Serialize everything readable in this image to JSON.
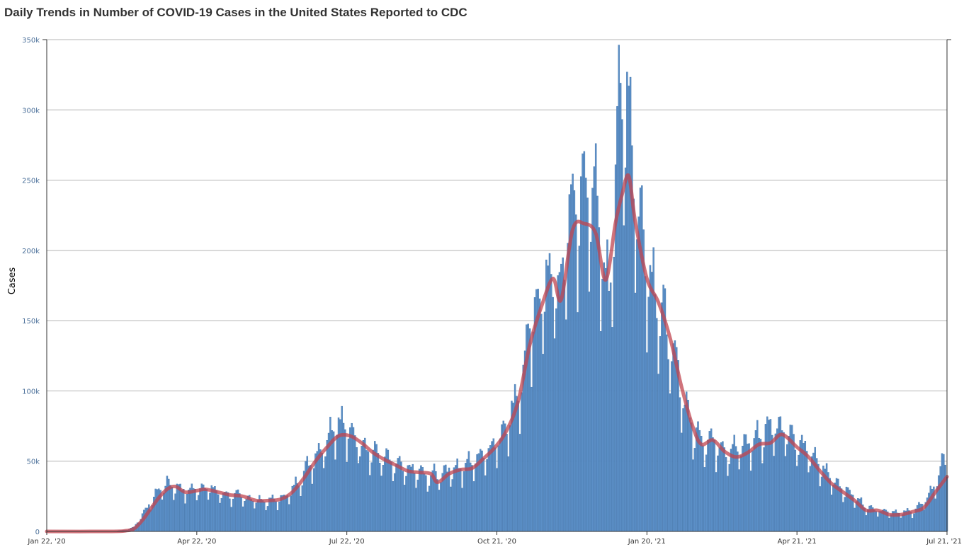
{
  "chart_data": {
    "type": "bar",
    "title": "Daily Trends in Number of COVID-19 Cases in the United States Reported to CDC",
    "ylabel": "Cases",
    "xlabel": "",
    "ylim": [
      0,
      350000
    ],
    "y_ticks": [
      0,
      50000,
      100000,
      150000,
      200000,
      250000,
      300000,
      350000
    ],
    "y_tick_labels": [
      "0",
      "50k",
      "100k",
      "150k",
      "200k",
      "250k",
      "300k",
      "350k"
    ],
    "x_range": [
      "2020-01-22",
      "2021-07-21"
    ],
    "x_ticks": [
      {
        "date": "2020-01-22",
        "label": "Jan 22, '20"
      },
      {
        "date": "2020-04-22",
        "label": "Apr 22, '20"
      },
      {
        "date": "2020-07-22",
        "label": "Jul 22, '20"
      },
      {
        "date": "2020-10-21",
        "label": "Oct 21, '20"
      },
      {
        "date": "2021-01-20",
        "label": "Jan 20, '21"
      },
      {
        "date": "2021-04-21",
        "label": "Apr 21, '21"
      },
      {
        "date": "2021-07-21",
        "label": "Jul 21, '21"
      }
    ],
    "grid": true,
    "colors": {
      "bars": "#5b8fc7",
      "bars_edge": "#3d6fa6",
      "average_line": "#c0444f"
    },
    "series": [
      {
        "kind": "bar",
        "description": "daily cases, sampled at key dates",
        "points": [
          [
            "2020-01-22",
            0
          ],
          [
            "2020-03-01",
            0
          ],
          [
            "2020-03-10",
            1000
          ],
          [
            "2020-03-15",
            3000
          ],
          [
            "2020-03-20",
            12000
          ],
          [
            "2020-03-25",
            20000
          ],
          [
            "2020-03-30",
            29000
          ],
          [
            "2020-04-04",
            33000
          ],
          [
            "2020-04-10",
            31000
          ],
          [
            "2020-04-16",
            28000
          ],
          [
            "2020-04-22",
            30000
          ],
          [
            "2020-04-28",
            31000
          ],
          [
            "2020-05-05",
            27000
          ],
          [
            "2020-05-12",
            25000
          ],
          [
            "2020-05-20",
            24000
          ],
          [
            "2020-05-27",
            22000
          ],
          [
            "2020-06-03",
            21000
          ],
          [
            "2020-06-10",
            22000
          ],
          [
            "2020-06-17",
            26000
          ],
          [
            "2020-06-24",
            37000
          ],
          [
            "2020-07-01",
            50000
          ],
          [
            "2020-07-08",
            60000
          ],
          [
            "2020-07-13",
            72000
          ],
          [
            "2020-07-17",
            78000
          ],
          [
            "2020-07-22",
            70000
          ],
          [
            "2020-07-29",
            64000
          ],
          [
            "2020-08-05",
            56000
          ],
          [
            "2020-08-12",
            52000
          ],
          [
            "2020-08-19",
            47000
          ],
          [
            "2020-08-26",
            43000
          ],
          [
            "2020-09-02",
            42000
          ],
          [
            "2020-09-09",
            38000
          ],
          [
            "2020-09-16",
            40000
          ],
          [
            "2020-09-23",
            44000
          ],
          [
            "2020-09-30",
            44000
          ],
          [
            "2020-10-07",
            50000
          ],
          [
            "2020-10-14",
            56000
          ],
          [
            "2020-10-21",
            62000
          ],
          [
            "2020-10-28",
            78000
          ],
          [
            "2020-11-04",
            100000
          ],
          [
            "2020-11-11",
            145000
          ],
          [
            "2020-11-18",
            170000
          ],
          [
            "2020-11-25",
            180000
          ],
          [
            "2020-11-28",
            160000
          ],
          [
            "2020-12-04",
            225000
          ],
          [
            "2020-12-11",
            230000
          ],
          [
            "2020-12-18",
            245000
          ],
          [
            "2020-12-24",
            190000
          ],
          [
            "2020-12-28",
            165000
          ],
          [
            "2021-01-02",
            276000
          ],
          [
            "2021-01-08",
            313000
          ],
          [
            "2021-01-13",
            235000
          ],
          [
            "2021-01-20",
            190000
          ],
          [
            "2021-01-27",
            160000
          ],
          [
            "2021-02-03",
            130000
          ],
          [
            "2021-02-10",
            100000
          ],
          [
            "2021-02-17",
            70000
          ],
          [
            "2021-02-24",
            65000
          ],
          [
            "2021-03-03",
            62000
          ],
          [
            "2021-03-10",
            56000
          ],
          [
            "2021-03-17",
            58000
          ],
          [
            "2021-03-24",
            62000
          ],
          [
            "2021-03-31",
            68000
          ],
          [
            "2021-04-07",
            75000
          ],
          [
            "2021-04-14",
            72000
          ],
          [
            "2021-04-21",
            62000
          ],
          [
            "2021-04-28",
            55000
          ],
          [
            "2021-05-05",
            45000
          ],
          [
            "2021-05-12",
            37000
          ],
          [
            "2021-05-19",
            30000
          ],
          [
            "2021-05-26",
            24000
          ],
          [
            "2021-06-02",
            17000
          ],
          [
            "2021-06-09",
            15000
          ],
          [
            "2021-06-16",
            14000
          ],
          [
            "2021-06-23",
            13000
          ],
          [
            "2021-06-30",
            14000
          ],
          [
            "2021-07-07",
            20000
          ],
          [
            "2021-07-14",
            33000
          ],
          [
            "2021-07-21",
            55000
          ]
        ]
      },
      {
        "kind": "line",
        "description": "7-day moving average",
        "points": [
          [
            "2020-01-22",
            0
          ],
          [
            "2020-03-01",
            0
          ],
          [
            "2020-03-10",
            500
          ],
          [
            "2020-03-15",
            2000
          ],
          [
            "2020-03-20",
            8000
          ],
          [
            "2020-03-25",
            16000
          ],
          [
            "2020-03-30",
            24000
          ],
          [
            "2020-04-04",
            30000
          ],
          [
            "2020-04-09",
            32000
          ],
          [
            "2020-04-15",
            28000
          ],
          [
            "2020-04-22",
            29000
          ],
          [
            "2020-04-27",
            30000
          ],
          [
            "2020-05-05",
            28000
          ],
          [
            "2020-05-12",
            26000
          ],
          [
            "2020-05-20",
            25000
          ],
          [
            "2020-05-28",
            22000
          ],
          [
            "2020-06-05",
            22000
          ],
          [
            "2020-06-12",
            23000
          ],
          [
            "2020-06-19",
            28000
          ],
          [
            "2020-06-26",
            38000
          ],
          [
            "2020-07-03",
            50000
          ],
          [
            "2020-07-10",
            60000
          ],
          [
            "2020-07-17",
            68000
          ],
          [
            "2020-07-24",
            68000
          ],
          [
            "2020-07-31",
            63000
          ],
          [
            "2020-08-07",
            56000
          ],
          [
            "2020-08-14",
            51000
          ],
          [
            "2020-08-21",
            47000
          ],
          [
            "2020-08-28",
            43000
          ],
          [
            "2020-09-04",
            42000
          ],
          [
            "2020-09-11",
            41000
          ],
          [
            "2020-09-15",
            35000
          ],
          [
            "2020-09-22",
            41000
          ],
          [
            "2020-09-29",
            44000
          ],
          [
            "2020-10-06",
            45000
          ],
          [
            "2020-10-13",
            52000
          ],
          [
            "2020-10-20",
            60000
          ],
          [
            "2020-10-27",
            72000
          ],
          [
            "2020-11-03",
            93000
          ],
          [
            "2020-11-10",
            133000
          ],
          [
            "2020-11-17",
            160000
          ],
          [
            "2020-11-24",
            180000
          ],
          [
            "2020-11-29",
            165000
          ],
          [
            "2020-12-06",
            215000
          ],
          [
            "2020-12-13",
            219000
          ],
          [
            "2020-12-20",
            212000
          ],
          [
            "2020-12-26",
            179000
          ],
          [
            "2021-01-01",
            220000
          ],
          [
            "2021-01-05",
            240000
          ],
          [
            "2021-01-09",
            253000
          ],
          [
            "2021-01-13",
            220000
          ],
          [
            "2021-01-20",
            180000
          ],
          [
            "2021-01-27",
            163000
          ],
          [
            "2021-02-03",
            138000
          ],
          [
            "2021-02-10",
            103000
          ],
          [
            "2021-02-17",
            74000
          ],
          [
            "2021-02-22",
            62000
          ],
          [
            "2021-03-01",
            65000
          ],
          [
            "2021-03-08",
            57000
          ],
          [
            "2021-03-15",
            53000
          ],
          [
            "2021-03-22",
            56000
          ],
          [
            "2021-03-29",
            62000
          ],
          [
            "2021-04-05",
            63000
          ],
          [
            "2021-04-12",
            69000
          ],
          [
            "2021-04-21",
            60000
          ],
          [
            "2021-04-28",
            53000
          ],
          [
            "2021-05-05",
            43000
          ],
          [
            "2021-05-12",
            34000
          ],
          [
            "2021-05-19",
            28000
          ],
          [
            "2021-05-26",
            22000
          ],
          [
            "2021-06-02",
            15000
          ],
          [
            "2021-06-09",
            15000
          ],
          [
            "2021-06-16",
            12000
          ],
          [
            "2021-06-23",
            12000
          ],
          [
            "2021-06-30",
            14000
          ],
          [
            "2021-07-07",
            17000
          ],
          [
            "2021-07-14",
            28000
          ],
          [
            "2021-07-21",
            39000
          ]
        ]
      }
    ]
  }
}
